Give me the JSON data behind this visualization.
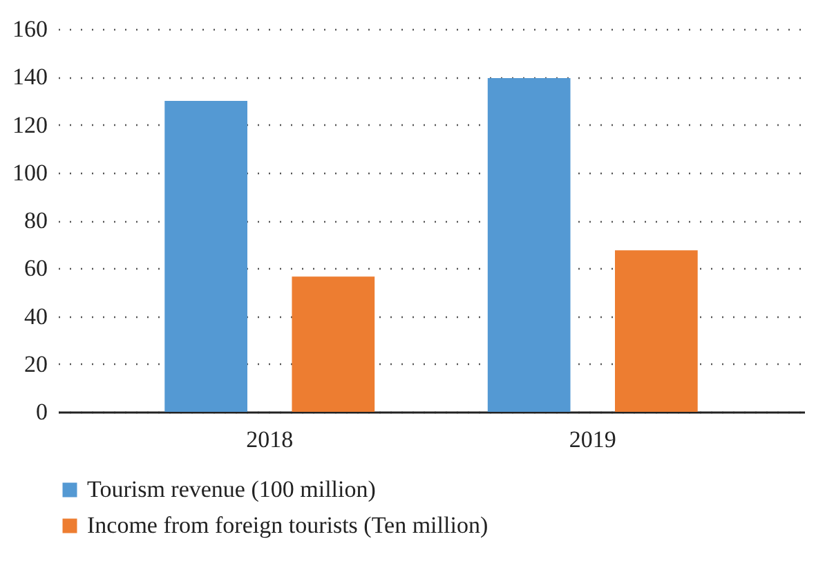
{
  "chart_data": {
    "type": "bar",
    "categories": [
      "2018",
      "2019"
    ],
    "series": [
      {
        "name": "Tourism revenue (100 million)",
        "color": "#5499d3",
        "values": [
          130,
          139.5
        ]
      },
      {
        "name": "Income from foreign tourists (Ten million)",
        "color": "#ed7d31",
        "values": [
          56.5,
          67.5
        ]
      }
    ],
    "ylim": [
      0,
      160
    ],
    "yticks": [
      0,
      20,
      40,
      60,
      80,
      100,
      120,
      140,
      160
    ],
    "grid": "y",
    "legend": "bottom"
  }
}
